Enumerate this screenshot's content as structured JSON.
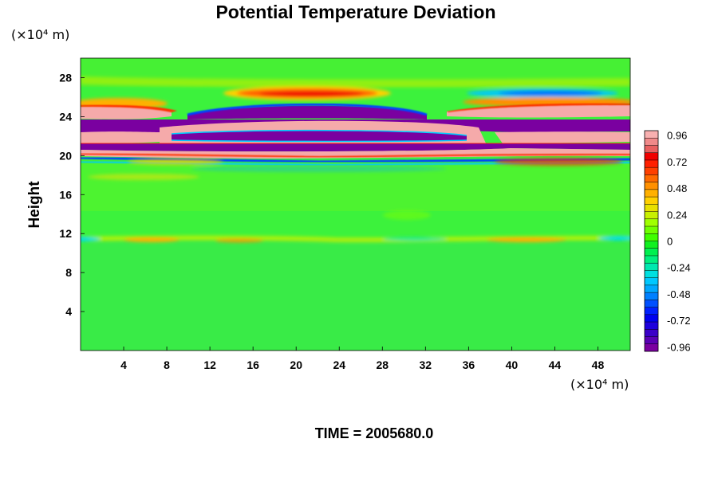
{
  "chart_data": {
    "type": "heatmap",
    "title": "Potential Temperature Deviation",
    "ylabel": "Height",
    "x_unit": "(×10⁴ m)",
    "y_unit": "(×10⁴ m)",
    "x_ticks": [
      4,
      8,
      12,
      16,
      20,
      24,
      28,
      32,
      36,
      40,
      44,
      48
    ],
    "y_ticks": [
      4,
      8,
      12,
      16,
      20,
      24,
      28
    ],
    "xlim": [
      0,
      51
    ],
    "ylim": [
      0,
      30
    ],
    "colorbar": {
      "min": -1.0,
      "max": 1.0,
      "tick_labels": [
        "0.96",
        "0.72",
        "0.48",
        "0.24",
        "0",
        "-0.24",
        "-0.48",
        "-0.72",
        "-0.96"
      ],
      "colors": [
        "#7a00a0",
        "#5a00b4",
        "#3a00c8",
        "#1e00dc",
        "#0000f0",
        "#0020ff",
        "#0050ff",
        "#0080ff",
        "#00a8ff",
        "#00c8ff",
        "#00e0e0",
        "#00e8b0",
        "#00f080",
        "#00f050",
        "#10f020",
        "#40ff00",
        "#70ff00",
        "#a0ff00",
        "#c8f000",
        "#e8e000",
        "#ffd000",
        "#ffb000",
        "#ff9000",
        "#ff6a00",
        "#ff4000",
        "#ff2000",
        "#f00000",
        "#e86060",
        "#f08a8a",
        "#f8b0b0"
      ]
    },
    "footer": "TIME = 2005680.0"
  }
}
